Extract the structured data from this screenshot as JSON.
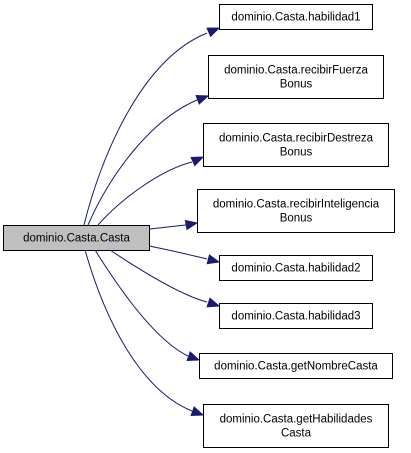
{
  "diagram": {
    "root": {
      "id": "root",
      "lines": [
        "dominio.Casta.Casta"
      ],
      "fill": "#bfbfbf"
    },
    "targets": [
      {
        "id": "habilidad1",
        "lines": [
          "dominio.Casta.habilidad1"
        ]
      },
      {
        "id": "recibirFuerzaBonus",
        "lines": [
          "dominio.Casta.recibirFuerza",
          "Bonus"
        ]
      },
      {
        "id": "recibirDestrezaBonus",
        "lines": [
          "dominio.Casta.recibirDestreza",
          "Bonus"
        ]
      },
      {
        "id": "recibirInteligenciaBonus",
        "lines": [
          "dominio.Casta.recibirInteligencia",
          "Bonus"
        ]
      },
      {
        "id": "habilidad2",
        "lines": [
          "dominio.Casta.habilidad2"
        ]
      },
      {
        "id": "habilidad3",
        "lines": [
          "dominio.Casta.habilidad3"
        ]
      },
      {
        "id": "getNombreCasta",
        "lines": [
          "dominio.Casta.getNombreCasta"
        ]
      },
      {
        "id": "getHabilidadesCasta",
        "lines": [
          "dominio.Casta.getHabilidades",
          "Casta"
        ]
      }
    ],
    "edge_color": "#1a1a73",
    "node_fill": "#ffffff"
  }
}
